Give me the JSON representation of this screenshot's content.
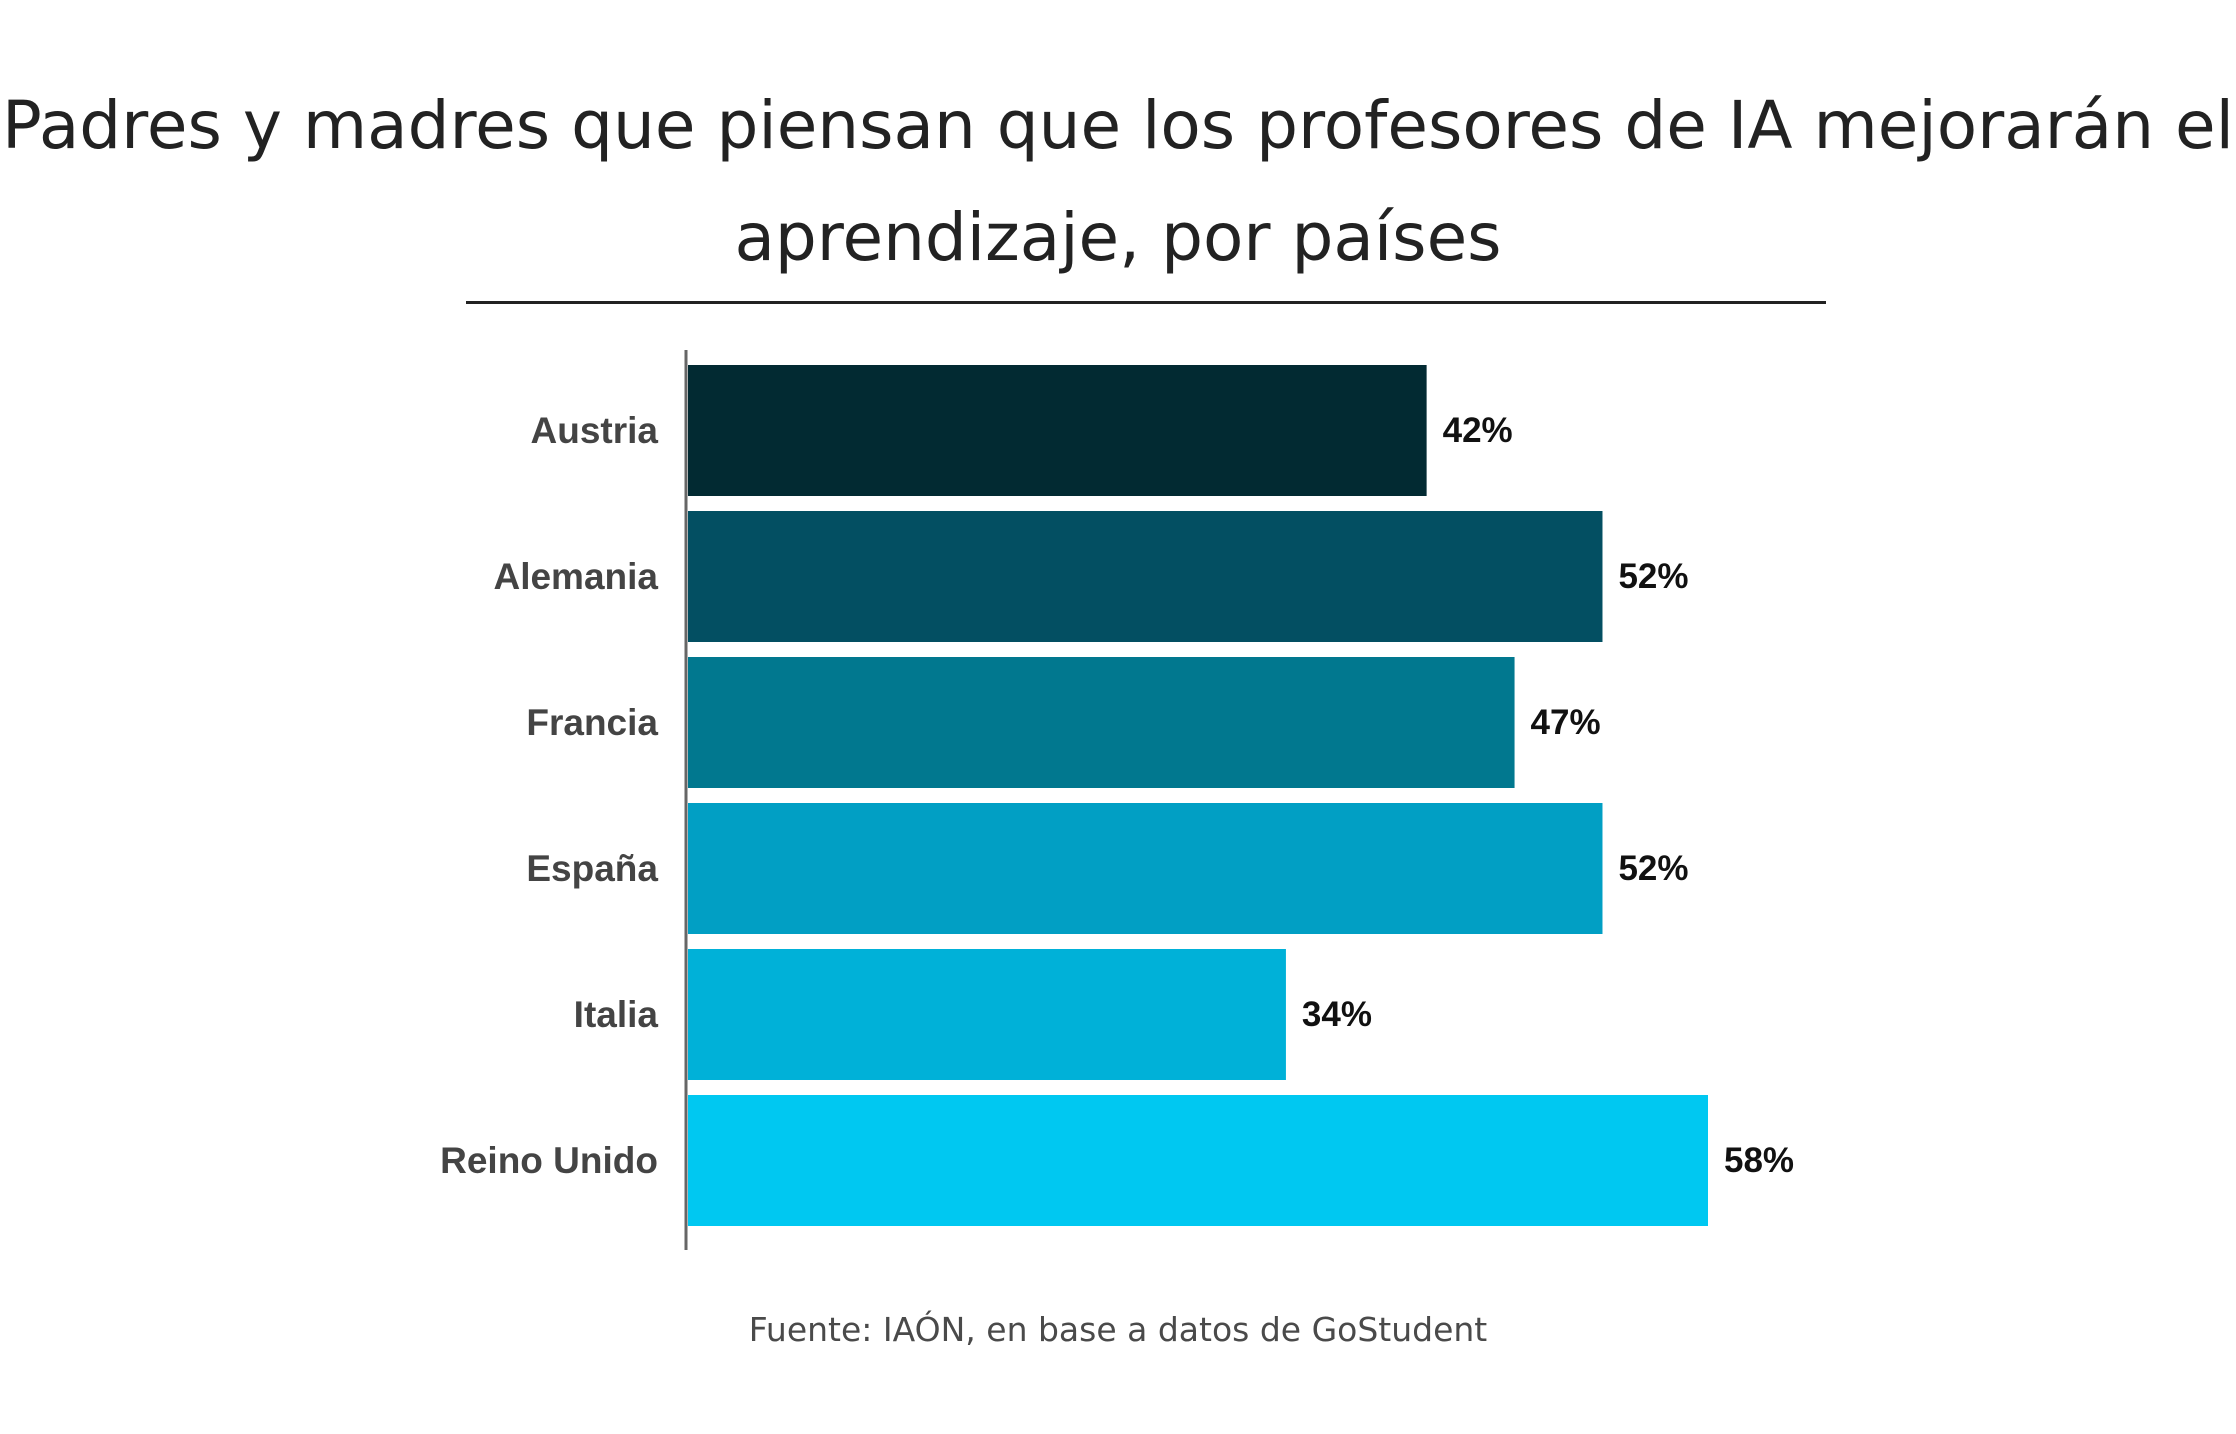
{
  "title": "Padres y madres que piensan que los profesores de IA mejorarán el aprendizaje, por países",
  "source": "Fuente: IAÓN, en base a datos de GoStudent",
  "chart_data": {
    "type": "bar",
    "orientation": "horizontal",
    "title": "Padres y madres que piensan que los profesores de IA mejorarán el aprendizaje, por países",
    "categories": [
      "Austria",
      "Alemania",
      "Francia",
      "España",
      "Italia",
      "Reino Unido"
    ],
    "values": [
      42,
      52,
      47,
      52,
      34,
      58
    ],
    "value_labels": [
      "42%",
      "52%",
      "47%",
      "52%",
      "34%",
      "58%"
    ],
    "colors": [
      "#022a32",
      "#034f62",
      "#01788f",
      "#019fc4",
      "#00b1d8",
      "#00c8f1"
    ],
    "xlim": [
      0,
      58
    ],
    "grid": false,
    "legend": "none"
  }
}
